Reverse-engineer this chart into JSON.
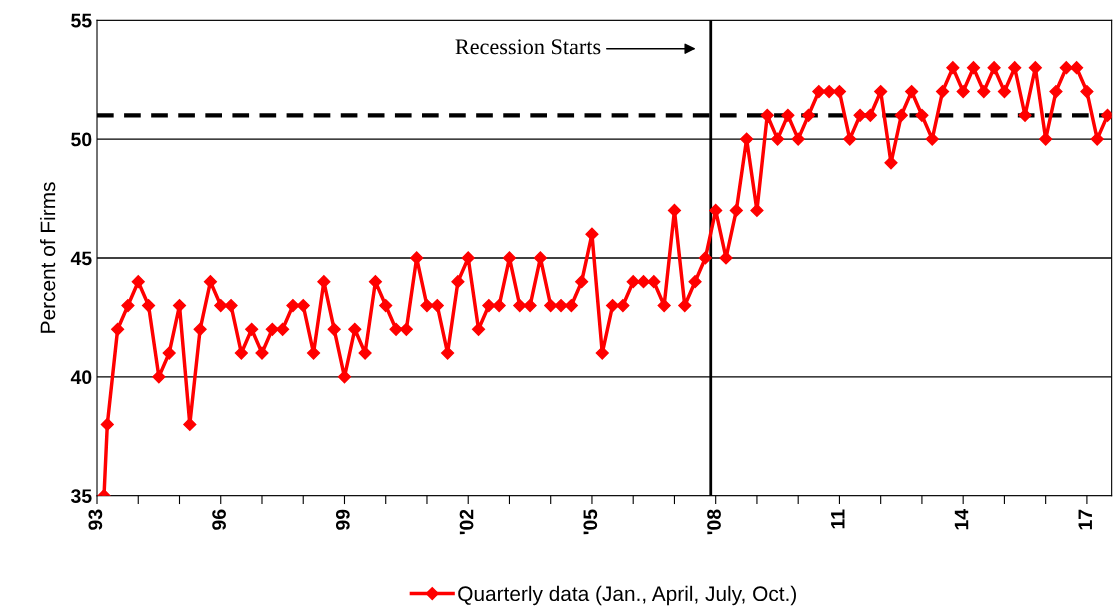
{
  "chart_data": {
    "type": "line",
    "ylabel": "Percent of Firms",
    "x": [
      1993.17,
      1993.25,
      1993.5,
      1993.75,
      1994,
      1994.25,
      1994.5,
      1994.75,
      1995,
      1995.25,
      1995.5,
      1995.75,
      1996,
      1996.25,
      1996.5,
      1996.75,
      1997,
      1997.25,
      1997.5,
      1997.75,
      1998,
      1998.25,
      1998.5,
      1998.75,
      1999,
      1999.25,
      1999.5,
      1999.75,
      2000,
      2000.25,
      2000.5,
      2000.75,
      2001,
      2001.25,
      2001.5,
      2001.75,
      2002,
      2002.25,
      2002.5,
      2002.75,
      2003,
      2003.25,
      2003.5,
      2003.75,
      2004,
      2004.25,
      2004.5,
      2004.75,
      2005,
      2005.25,
      2005.5,
      2005.75,
      2006,
      2006.25,
      2006.5,
      2006.75,
      2007,
      2007.25,
      2007.5,
      2007.75,
      2008,
      2008.25,
      2008.5,
      2008.75,
      2009,
      2009.25,
      2009.5,
      2009.75,
      2010,
      2010.25,
      2010.5,
      2010.75,
      2011,
      2011.25,
      2011.5,
      2011.75,
      2012,
      2012.25,
      2012.5,
      2012.75,
      2013,
      2013.25,
      2013.5,
      2013.75,
      2014,
      2014.25,
      2014.5,
      2014.75,
      2015,
      2015.25,
      2015.5,
      2015.75,
      2016,
      2016.25,
      2016.5,
      2016.75,
      2017,
      2017.25,
      2017.5
    ],
    "series": [
      {
        "name": "Quarterly data (Jan., April, July, Oct.)",
        "color": "#ff0000",
        "values": [
          35,
          38,
          42,
          43,
          44,
          43,
          40,
          41,
          43,
          38,
          42,
          44,
          43,
          43,
          41,
          42,
          41,
          42,
          42,
          43,
          43,
          41,
          44,
          42,
          40,
          42,
          41,
          44,
          43,
          42,
          42,
          45,
          43,
          43,
          41,
          44,
          45,
          42,
          43,
          43,
          45,
          43,
          43,
          45,
          43,
          43,
          43,
          44,
          46,
          41,
          43,
          43,
          44,
          44,
          44,
          43,
          47,
          43,
          44,
          45,
          47,
          45,
          47,
          50,
          47,
          51,
          50,
          51,
          50,
          51,
          52,
          52,
          52,
          50,
          51,
          51,
          52,
          49,
          51,
          52,
          51,
          50,
          52,
          53,
          52,
          53,
          52,
          53,
          52,
          53,
          51,
          53,
          50,
          52,
          53,
          53,
          52,
          50,
          51
        ]
      }
    ],
    "xlim": [
      1993,
      2017.6
    ],
    "xticks": [
      {
        "value": 1993,
        "label": "93"
      },
      {
        "value": 1994,
        "label": null
      },
      {
        "value": 1995,
        "label": null
      },
      {
        "value": 1996,
        "label": "96"
      },
      {
        "value": 1997,
        "label": null
      },
      {
        "value": 1998,
        "label": null
      },
      {
        "value": 1999,
        "label": "99"
      },
      {
        "value": 2000,
        "label": null
      },
      {
        "value": 2001,
        "label": null
      },
      {
        "value": 2002,
        "label": "'02"
      },
      {
        "value": 2003,
        "label": null
      },
      {
        "value": 2004,
        "label": null
      },
      {
        "value": 2005,
        "label": "'05"
      },
      {
        "value": 2006,
        "label": null
      },
      {
        "value": 2007,
        "label": null
      },
      {
        "value": 2008,
        "label": "'08"
      },
      {
        "value": 2009,
        "label": null
      },
      {
        "value": 2010,
        "label": null
      },
      {
        "value": 2011,
        "label": "11"
      },
      {
        "value": 2012,
        "label": null
      },
      {
        "value": 2013,
        "label": null
      },
      {
        "value": 2014,
        "label": "14"
      },
      {
        "value": 2015,
        "label": null
      },
      {
        "value": 2016,
        "label": null
      },
      {
        "value": 2017,
        "label": "17"
      }
    ],
    "ylim": [
      35,
      55
    ],
    "yticks": [
      35,
      40,
      45,
      50,
      55
    ],
    "ref_lines": [
      {
        "axis": "y",
        "value": 51,
        "color": "#000000",
        "line_style": "dashed"
      },
      {
        "axis": "x",
        "value": 2007.88,
        "label": "Recession Starts",
        "color": "#000000",
        "line_style": "solid"
      }
    ],
    "grid": "y",
    "legend": "bottom",
    "marker": "diamond",
    "line_style": "solid"
  }
}
